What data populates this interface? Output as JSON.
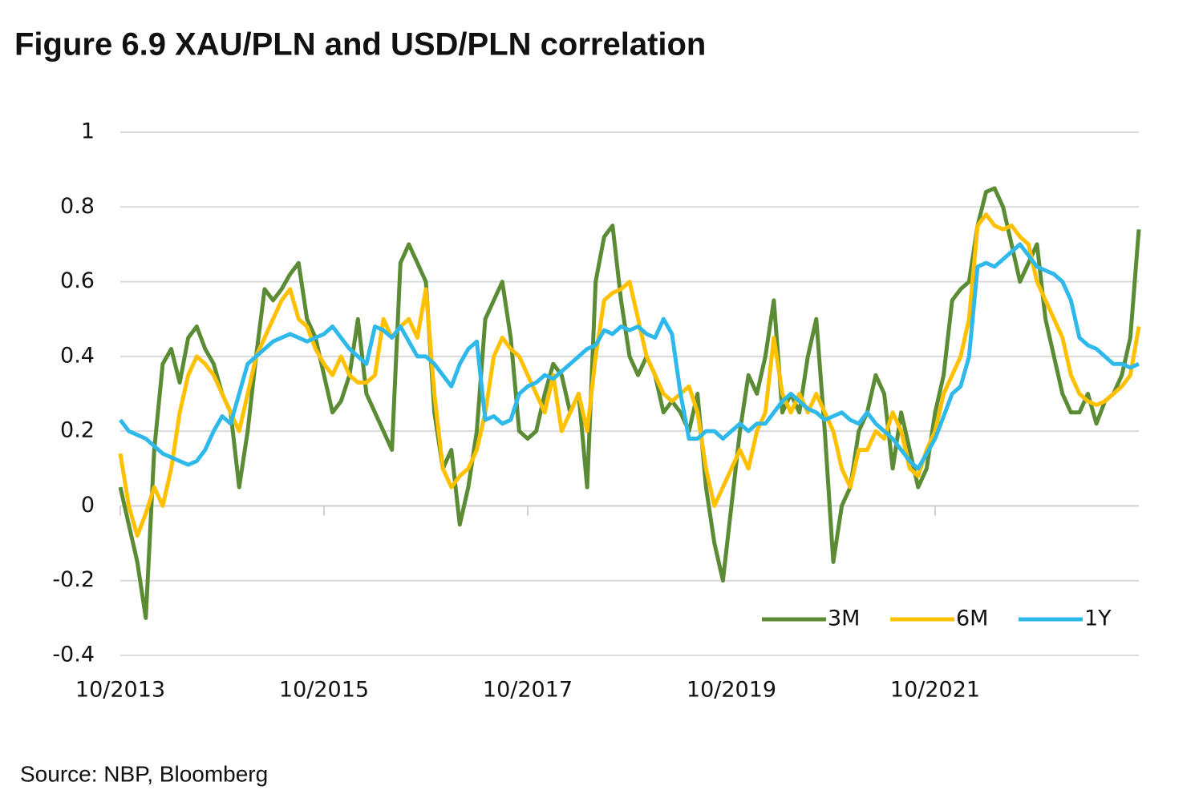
{
  "chart_data": {
    "type": "line",
    "title": "Figure 6.9    XAU/PLN and USD/PLN correlation",
    "source": "Source: NBP, Bloomberg",
    "x": [
      "10/2013",
      "11/2013",
      "12/2013",
      "1/2014",
      "2/2014",
      "3/2014",
      "4/2014",
      "5/2014",
      "6/2014",
      "7/2014",
      "8/2014",
      "9/2014",
      "10/2014",
      "11/2014",
      "12/2014",
      "1/2015",
      "2/2015",
      "3/2015",
      "4/2015",
      "5/2015",
      "6/2015",
      "7/2015",
      "8/2015",
      "9/2015",
      "10/2015",
      "11/2015",
      "12/2015",
      "1/2016",
      "2/2016",
      "3/2016",
      "4/2016",
      "5/2016",
      "6/2016",
      "7/2016",
      "8/2016",
      "9/2016",
      "10/2016",
      "11/2016",
      "12/2016",
      "1/2017",
      "2/2017",
      "3/2017",
      "4/2017",
      "5/2017",
      "6/2017",
      "7/2017",
      "8/2017",
      "9/2017",
      "10/2017",
      "11/2017",
      "12/2017",
      "1/2018",
      "2/2018",
      "3/2018",
      "4/2018",
      "5/2018",
      "6/2018",
      "7/2018",
      "8/2018",
      "9/2018",
      "10/2018",
      "11/2018",
      "12/2018",
      "1/2019",
      "2/2019",
      "3/2019",
      "4/2019",
      "5/2019",
      "6/2019",
      "7/2019",
      "8/2019",
      "9/2019",
      "10/2019",
      "11/2019",
      "12/2019",
      "1/2020",
      "2/2020",
      "3/2020",
      "4/2020",
      "5/2020",
      "6/2020",
      "7/2020",
      "8/2020",
      "9/2020",
      "10/2020",
      "11/2020",
      "12/2020",
      "1/2021",
      "2/2021",
      "3/2021",
      "4/2021",
      "5/2021",
      "6/2021",
      "7/2021",
      "8/2021",
      "9/2021",
      "10/2021",
      "11/2021",
      "12/2021",
      "1/2022",
      "2/2022",
      "3/2022",
      "4/2022",
      "5/2022",
      "6/2022",
      "7/2022",
      "8/2022",
      "9/2022",
      "10/2022",
      "11/2022",
      "12/2022",
      "1/2023",
      "2/2023",
      "3/2023",
      "4/2023",
      "5/2023",
      "6/2023",
      "7/2023",
      "8/2023",
      "9/2023",
      "10/2023"
    ],
    "series": [
      {
        "name": "3M",
        "color": "#5b8c35",
        "values": [
          0.05,
          -0.05,
          -0.15,
          -0.3,
          0.15,
          0.38,
          0.42,
          0.33,
          0.45,
          0.48,
          0.42,
          0.38,
          0.3,
          0.25,
          0.05,
          0.2,
          0.4,
          0.58,
          0.55,
          0.58,
          0.62,
          0.65,
          0.5,
          0.45,
          0.35,
          0.25,
          0.28,
          0.35,
          0.5,
          0.3,
          0.25,
          0.2,
          0.15,
          0.65,
          0.7,
          0.65,
          0.6,
          0.25,
          0.1,
          0.15,
          -0.05,
          0.05,
          0.2,
          0.5,
          0.55,
          0.6,
          0.45,
          0.2,
          0.18,
          0.2,
          0.3,
          0.38,
          0.35,
          0.25,
          0.3,
          0.05,
          0.6,
          0.72,
          0.75,
          0.55,
          0.4,
          0.35,
          0.4,
          0.35,
          0.25,
          0.28,
          0.25,
          0.2,
          0.3,
          0.05,
          -0.1,
          -0.2,
          0.0,
          0.2,
          0.35,
          0.3,
          0.4,
          0.55,
          0.25,
          0.3,
          0.25,
          0.4,
          0.5,
          0.2,
          -0.15,
          0.0,
          0.05,
          0.2,
          0.25,
          0.35,
          0.3,
          0.1,
          0.25,
          0.15,
          0.05,
          0.1,
          0.25,
          0.35,
          0.55,
          0.58,
          0.6,
          0.75,
          0.84,
          0.85,
          0.8,
          0.7,
          0.6,
          0.65,
          0.7,
          0.5,
          0.4,
          0.3,
          0.25,
          0.25,
          0.3,
          0.22,
          0.28,
          0.3,
          0.35,
          0.45,
          0.74
        ]
      },
      {
        "name": "6M",
        "color": "#ffc000",
        "values": [
          0.14,
          0.0,
          -0.08,
          -0.02,
          0.05,
          0.0,
          0.1,
          0.25,
          0.35,
          0.4,
          0.38,
          0.35,
          0.3,
          0.25,
          0.2,
          0.3,
          0.4,
          0.45,
          0.5,
          0.55,
          0.58,
          0.5,
          0.48,
          0.42,
          0.38,
          0.35,
          0.4,
          0.35,
          0.33,
          0.33,
          0.35,
          0.5,
          0.45,
          0.48,
          0.5,
          0.45,
          0.58,
          0.3,
          0.1,
          0.05,
          0.08,
          0.1,
          0.15,
          0.25,
          0.4,
          0.45,
          0.42,
          0.4,
          0.35,
          0.3,
          0.25,
          0.35,
          0.2,
          0.25,
          0.3,
          0.2,
          0.4,
          0.55,
          0.57,
          0.58,
          0.6,
          0.5,
          0.4,
          0.35,
          0.3,
          0.28,
          0.3,
          0.32,
          0.25,
          0.1,
          0.0,
          0.05,
          0.1,
          0.15,
          0.1,
          0.2,
          0.25,
          0.45,
          0.3,
          0.25,
          0.3,
          0.25,
          0.3,
          0.25,
          0.2,
          0.1,
          0.05,
          0.15,
          0.15,
          0.2,
          0.18,
          0.25,
          0.2,
          0.1,
          0.08,
          0.15,
          0.2,
          0.3,
          0.35,
          0.4,
          0.5,
          0.75,
          0.78,
          0.75,
          0.74,
          0.75,
          0.72,
          0.7,
          0.6,
          0.55,
          0.5,
          0.45,
          0.35,
          0.3,
          0.28,
          0.27,
          0.28,
          0.3,
          0.32,
          0.35,
          0.48
        ]
      },
      {
        "name": "1Y",
        "color": "#2fb9ea",
        "values": [
          0.23,
          0.2,
          0.19,
          0.18,
          0.16,
          0.14,
          0.13,
          0.12,
          0.11,
          0.12,
          0.15,
          0.2,
          0.24,
          0.22,
          0.3,
          0.38,
          0.4,
          0.42,
          0.44,
          0.45,
          0.46,
          0.45,
          0.44,
          0.45,
          0.46,
          0.48,
          0.45,
          0.42,
          0.4,
          0.38,
          0.48,
          0.47,
          0.45,
          0.48,
          0.44,
          0.4,
          0.4,
          0.38,
          0.35,
          0.32,
          0.38,
          0.42,
          0.44,
          0.23,
          0.24,
          0.22,
          0.23,
          0.3,
          0.32,
          0.33,
          0.35,
          0.34,
          0.36,
          0.38,
          0.4,
          0.42,
          0.43,
          0.47,
          0.46,
          0.48,
          0.47,
          0.48,
          0.46,
          0.45,
          0.5,
          0.46,
          0.3,
          0.18,
          0.18,
          0.2,
          0.2,
          0.18,
          0.2,
          0.22,
          0.2,
          0.22,
          0.22,
          0.25,
          0.28,
          0.3,
          0.28,
          0.26,
          0.25,
          0.23,
          0.24,
          0.25,
          0.23,
          0.22,
          0.25,
          0.22,
          0.2,
          0.18,
          0.15,
          0.12,
          0.1,
          0.14,
          0.18,
          0.24,
          0.3,
          0.32,
          0.4,
          0.64,
          0.65,
          0.64,
          0.66,
          0.68,
          0.7,
          0.67,
          0.64,
          0.63,
          0.62,
          0.6,
          0.55,
          0.45,
          0.43,
          0.42,
          0.4,
          0.38,
          0.38,
          0.37,
          0.38
        ]
      }
    ],
    "xlim": [
      "10/2013",
      "10/2023"
    ],
    "xticks": [
      "10/2013",
      "10/2015",
      "10/2017",
      "10/2019",
      "10/2021"
    ],
    "ylim": [
      -0.4,
      1
    ],
    "yticks": [
      -0.4,
      -0.2,
      0,
      0.2,
      0.4,
      0.6,
      0.8,
      1
    ],
    "grid": true,
    "legend": "lower right"
  }
}
